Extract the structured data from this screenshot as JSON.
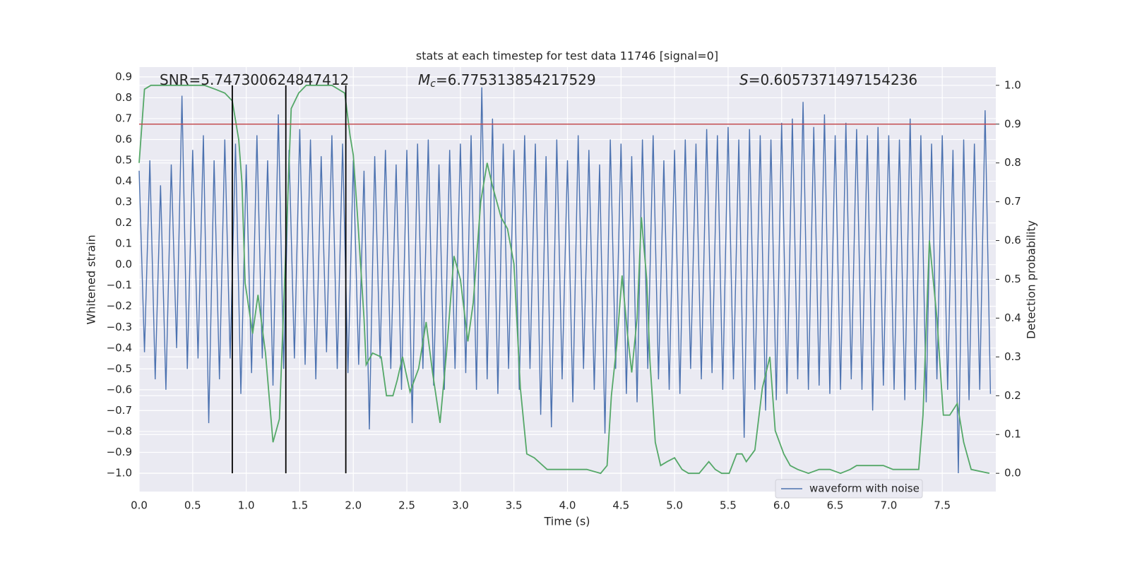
{
  "chart_data": {
    "type": "line",
    "title": "stats at each timestep for test data 11746 [signal=0]",
    "xlabel": "Time (s)",
    "ylabel": "Whitened strain",
    "y2label": "Detection probability",
    "annotations": [
      {
        "text": "SNR=5.747300624847412"
      },
      {
        "symbol": "M",
        "subscript": "c",
        "text": "=6.775313854217529"
      },
      {
        "symbol": "S",
        "text": "=0.6057371497154236"
      }
    ],
    "xlim": [
      0,
      8.0
    ],
    "xticks": [
      {
        "value": 0,
        "label": "0.0"
      },
      0.5,
      {
        "value": 1,
        "label": "1.0"
      },
      1.5,
      {
        "value": 2,
        "label": "2.0"
      },
      2.5,
      {
        "value": 3,
        "label": "3.0"
      },
      3.5,
      {
        "value": 4,
        "label": "4.0"
      },
      4.5,
      {
        "value": 5,
        "label": "5.0"
      },
      5.5,
      {
        "value": 6,
        "label": "6.0"
      },
      6.5,
      {
        "value": 7,
        "label": "7.0"
      },
      7.5
    ],
    "ylim": [
      -1.088,
      0.947
    ],
    "yticks": [
      0.9,
      0.8,
      0.7,
      0.6,
      0.5,
      0.4,
      0.3,
      0.2,
      0.1,
      {
        "value": 0,
        "label": "0.0"
      },
      {
        "value": -0.1,
        "label": "−0.1"
      },
      {
        "value": -0.2,
        "label": "−0.2"
      },
      {
        "value": -0.3,
        "label": "−0.3"
      },
      {
        "value": -0.4,
        "label": "−0.4"
      },
      {
        "value": -0.5,
        "label": "−0.5"
      },
      {
        "value": -0.6,
        "label": "−0.6"
      },
      {
        "value": -0.7,
        "label": "−0.7"
      },
      {
        "value": -0.8,
        "label": "−0.8"
      },
      {
        "value": -0.9,
        "label": "−0.9"
      },
      {
        "value": -1,
        "label": "−1.0"
      }
    ],
    "y2lim": [
      -0.047,
      1.047
    ],
    "y2ticks": [
      {
        "value": 0,
        "label": "0.0"
      },
      0.1,
      0.2,
      0.3,
      0.4,
      0.5,
      0.6,
      0.7,
      0.8,
      0.9,
      {
        "value": 1,
        "label": "1.0"
      }
    ],
    "grid": true,
    "legend_loc": "lower right",
    "series": [
      {
        "name": "waveform with noise",
        "color": "#4c72b0",
        "x": [
          0,
          0.05,
          0.1,
          0.15,
          0.2,
          0.25,
          0.3,
          0.35,
          0.4,
          0.45,
          0.5,
          0.55,
          0.6,
          0.65,
          0.7,
          0.75,
          0.8,
          0.85,
          0.9,
          0.95,
          1,
          1.05,
          1.1,
          1.15,
          1.2,
          1.25,
          1.3,
          1.35,
          1.4,
          1.45,
          1.5,
          1.55,
          1.6,
          1.65,
          1.7,
          1.75,
          1.8,
          1.85,
          1.9,
          1.95,
          2,
          2.05,
          2.1,
          2.15,
          2.2,
          2.25,
          2.3,
          2.35,
          2.4,
          2.45,
          2.5,
          2.55,
          2.6,
          2.65,
          2.7,
          2.75,
          2.8,
          2.85,
          2.9,
          2.95,
          3,
          3.05,
          3.1,
          3.15,
          3.2,
          3.25,
          3.3,
          3.35,
          3.4,
          3.45,
          3.5,
          3.55,
          3.6,
          3.65,
          3.7,
          3.75,
          3.8,
          3.85,
          3.9,
          3.95,
          4,
          4.05,
          4.1,
          4.15,
          4.2,
          4.25,
          4.3,
          4.35,
          4.4,
          4.45,
          4.5,
          4.55,
          4.6,
          4.65,
          4.7,
          4.75,
          4.8,
          4.85,
          4.9,
          4.95,
          5,
          5.05,
          5.1,
          5.15,
          5.2,
          5.25,
          5.3,
          5.35,
          5.4,
          5.45,
          5.5,
          5.55,
          5.6,
          5.65,
          5.7,
          5.75,
          5.8,
          5.85,
          5.9,
          5.95,
          6,
          6.05,
          6.1,
          6.15,
          6.2,
          6.25,
          6.3,
          6.35,
          6.4,
          6.45,
          6.5,
          6.55,
          6.6,
          6.65,
          6.7,
          6.75,
          6.8,
          6.85,
          6.9,
          6.95,
          7,
          7.05,
          7.1,
          7.15,
          7.2,
          7.25,
          7.3,
          7.35,
          7.4,
          7.45,
          7.5,
          7.55,
          7.6,
          7.65,
          7.7,
          7.75,
          7.8,
          7.85,
          7.9,
          7.95
        ],
        "values": [
          0.45,
          -0.42,
          0.5,
          -0.55,
          0.38,
          -0.6,
          0.48,
          -0.4,
          0.81,
          -0.5,
          0.55,
          -0.45,
          0.62,
          -0.76,
          0.5,
          -0.55,
          0.6,
          -0.45,
          0.58,
          -0.62,
          0.48,
          -0.52,
          0.62,
          -0.45,
          0.5,
          -0.58,
          0.72,
          -0.5,
          0.55,
          -0.45,
          0.65,
          -0.48,
          0.6,
          -0.55,
          0.52,
          -0.42,
          0.62,
          -0.5,
          0.58,
          -0.52,
          0.5,
          -0.48,
          0.45,
          -0.79,
          0.52,
          -0.45,
          0.55,
          -0.5,
          0.48,
          -0.6,
          0.55,
          -0.76,
          0.58,
          -0.5,
          0.6,
          -0.58,
          0.48,
          -0.6,
          0.55,
          -0.5,
          0.58,
          -0.52,
          0.62,
          -0.6,
          0.85,
          -0.55,
          0.7,
          -0.62,
          0.58,
          -0.5,
          0.55,
          -0.6,
          0.62,
          -0.5,
          0.58,
          -0.72,
          0.52,
          -0.78,
          0.6,
          -0.55,
          0.5,
          -0.66,
          0.62,
          -0.5,
          0.55,
          -0.6,
          0.48,
          -0.81,
          0.6,
          -0.5,
          0.58,
          -0.62,
          0.52,
          -0.66,
          0.6,
          -0.5,
          0.62,
          -0.55,
          0.5,
          -0.6,
          0.55,
          -0.62,
          0.6,
          -0.5,
          0.58,
          -0.55,
          0.65,
          -0.52,
          0.62,
          -0.6,
          0.66,
          -0.55,
          0.6,
          -0.83,
          0.65,
          -0.6,
          0.62,
          -0.7,
          0.6,
          -0.65,
          0.68,
          -0.62,
          0.7,
          -0.55,
          0.78,
          -0.6,
          0.66,
          -0.58,
          0.72,
          -0.62,
          0.62,
          -0.6,
          0.68,
          -0.55,
          0.65,
          -0.6,
          0.62,
          -0.7,
          0.66,
          -0.58,
          0.62,
          -0.6,
          0.6,
          -0.65,
          0.7,
          -0.6,
          0.62,
          -0.66,
          0.58,
          -0.55,
          0.62,
          -0.6,
          0.55,
          -1.0,
          0.6,
          -0.65,
          0.58,
          -0.6,
          0.74,
          -0.62
        ]
      },
      {
        "color": "#55a868",
        "axis": "y2",
        "x": [
          0,
          0.05,
          0.11,
          0.61,
          0.71,
          0.8,
          0.87,
          0.93,
          0.96,
          0.99,
          1.06,
          1.11,
          1.18,
          1.25,
          1.31,
          1.37,
          1.42,
          1.49,
          1.56,
          1.8,
          1.92,
          1.97,
          2,
          2.04,
          2.1,
          2.12,
          2.18,
          2.26,
          2.31,
          2.37,
          2.41,
          2.46,
          2.53,
          2.61,
          2.68,
          2.74,
          2.81,
          2.87,
          2.94,
          3,
          3.07,
          3.12,
          3.19,
          3.25,
          3.3,
          3.38,
          3.44,
          3.5,
          3.56,
          3.62,
          3.69,
          3.81,
          3.88,
          3.98,
          4.06,
          4.18,
          4.31,
          4.37,
          4.41,
          4.46,
          4.51,
          4.56,
          4.6,
          4.65,
          4.69,
          4.74,
          4.77,
          4.82,
          4.87,
          4.93,
          5,
          5.07,
          5.13,
          5.23,
          5.32,
          5.38,
          5.44,
          5.51,
          5.58,
          5.63,
          5.67,
          5.75,
          5.82,
          5.89,
          5.94,
          6.02,
          6.08,
          6.15,
          6.25,
          6.35,
          6.45,
          6.55,
          6.64,
          6.7,
          6.81,
          6.95,
          7.04,
          7.14,
          7.22,
          7.28,
          7.32,
          7.38,
          7.45,
          7.51,
          7.57,
          7.64,
          7.7,
          7.77,
          7.94
        ],
        "values": [
          0.8,
          0.99,
          1,
          1,
          0.99,
          0.98,
          0.96,
          0.86,
          0.75,
          0.49,
          0.36,
          0.46,
          0.31,
          0.08,
          0.14,
          0.58,
          0.94,
          0.98,
          1,
          1,
          0.98,
          0.87,
          0.82,
          0.66,
          0.4,
          0.28,
          0.31,
          0.3,
          0.2,
          0.2,
          0.24,
          0.3,
          0.21,
          0.27,
          0.39,
          0.26,
          0.13,
          0.31,
          0.56,
          0.5,
          0.34,
          0.44,
          0.7,
          0.8,
          0.74,
          0.66,
          0.63,
          0.54,
          0.22,
          0.05,
          0.04,
          0.01,
          0.01,
          0.01,
          0.01,
          0.01,
          0,
          0.02,
          0.2,
          0.33,
          0.51,
          0.36,
          0.26,
          0.4,
          0.66,
          0.5,
          0.29,
          0.08,
          0.02,
          0.03,
          0.04,
          0.01,
          0,
          0,
          0.03,
          0.01,
          0,
          0,
          0.05,
          0.05,
          0.03,
          0.06,
          0.22,
          0.3,
          0.11,
          0.05,
          0.02,
          0.01,
          0,
          0.01,
          0.01,
          0,
          0.01,
          0.02,
          0.02,
          0.02,
          0.01,
          0.01,
          0.01,
          0.01,
          0.15,
          0.6,
          0.4,
          0.15,
          0.15,
          0.18,
          0.08,
          0.01,
          0
        ]
      }
    ],
    "hlines": [
      {
        "value": 0.9,
        "axis": "y2",
        "color": "#c44e52"
      }
    ],
    "vlines": {
      "x": [
        0.87,
        1.37,
        1.93
      ],
      "ymin": 0,
      "ymax": 1,
      "axis": "y2",
      "color": "#000000"
    }
  }
}
